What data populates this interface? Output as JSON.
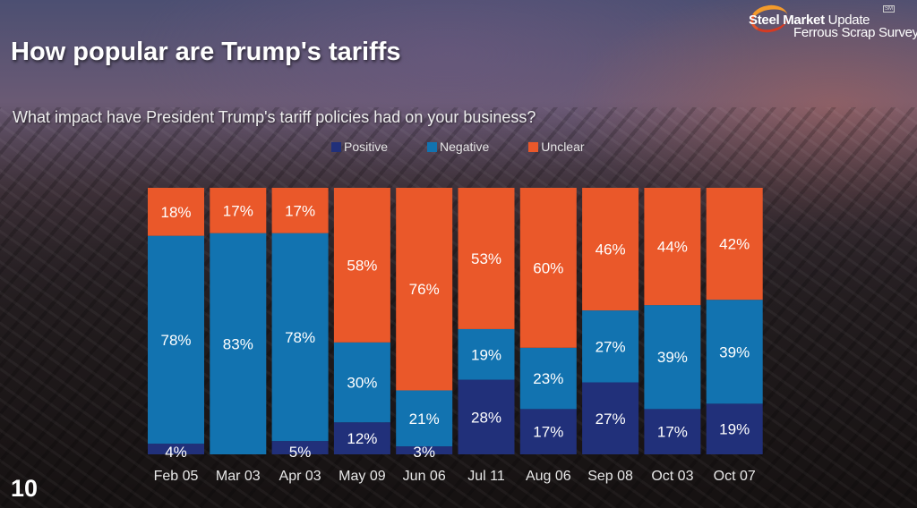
{
  "slide": {
    "title": "How popular are Trump's tariffs",
    "question": "What impact have President Trump's tariff policies had on your business?",
    "page_number": "10"
  },
  "logo": {
    "brand_bold": "Steel Market",
    "brand_light": "Update",
    "subtitle": "Ferrous Scrap Survey",
    "badge": "SM"
  },
  "colors": {
    "positive": "#21307a",
    "negative": "#1273b0",
    "unclear": "#ea582a"
  },
  "chart_data": {
    "type": "bar",
    "stacked": true,
    "title": "What impact have President Trump's tariff policies had on your business?",
    "xlabel": "",
    "ylabel": "",
    "ylim": [
      0,
      100
    ],
    "grid": false,
    "legend_position": "top",
    "categories": [
      "Feb 05",
      "Mar 03",
      "Apr 03",
      "May 09",
      "Jun 06",
      "Jul 11",
      "Aug 06",
      "Sep 08",
      "Oct 03",
      "Oct 07"
    ],
    "series": [
      {
        "name": "Positive",
        "color": "#21307a",
        "values": [
          4,
          0,
          5,
          12,
          3,
          28,
          17,
          27,
          17,
          19
        ],
        "labels": [
          "4%",
          "",
          "5%",
          "12%",
          "3%",
          "28%",
          "17%",
          "27%",
          "17%",
          "19%"
        ]
      },
      {
        "name": "Negative",
        "color": "#1273b0",
        "values": [
          78,
          83,
          78,
          30,
          21,
          19,
          23,
          27,
          39,
          39
        ],
        "labels": [
          "78%",
          "83%",
          "78%",
          "30%",
          "21%",
          "19%",
          "23%",
          "27%",
          "39%",
          "39%"
        ]
      },
      {
        "name": "Unclear",
        "color": "#ea582a",
        "values": [
          18,
          17,
          17,
          58,
          76,
          53,
          60,
          46,
          44,
          42
        ],
        "labels": [
          "18%",
          "17%",
          "17%",
          "58%",
          "76%",
          "53%",
          "60%",
          "46%",
          "44%",
          "42%"
        ]
      }
    ]
  }
}
